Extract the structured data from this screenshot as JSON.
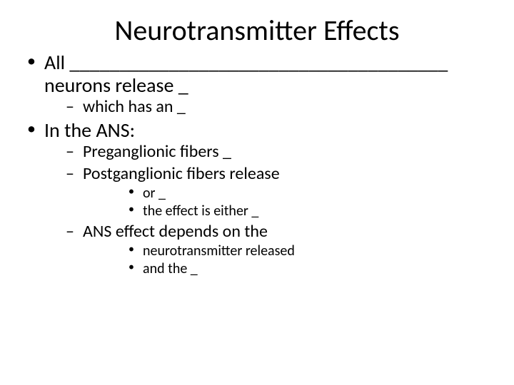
{
  "title": "Neurotransmitter Effects",
  "bullets": {
    "b1_line1": "All ______________________________________",
    "b1_line2": "neurons release _",
    "b1_sub1": "which has an _",
    "b2": "In the ANS:",
    "b2_sub1": "Preganglionic fibers _",
    "b2_sub2": "Postganglionic fibers release",
    "b2_sub2_a": "",
    "b2_sub2_b": "or _",
    "b2_sub2_c": "the effect is either _",
    "b2_sub3": "ANS effect depends on the",
    "b2_sub3_a": "neurotransmitter released",
    "b2_sub3_b": "and the _"
  },
  "colors": {
    "text": "#000000",
    "background": "#ffffff"
  },
  "font": {
    "title_size": 40,
    "lvl1_size": 28,
    "lvl2_size": 24,
    "lvl3_size": 20
  }
}
